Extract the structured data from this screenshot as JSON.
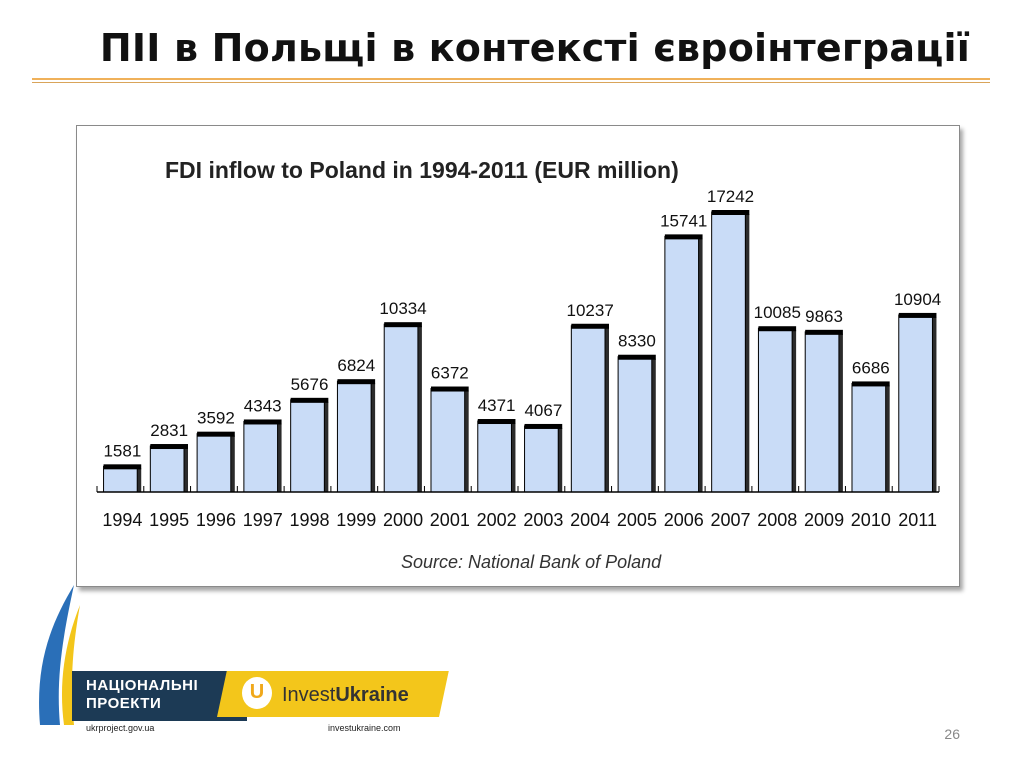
{
  "slide": {
    "title": "ПІІ в Польщі в контексті євроінтеграції",
    "page_number": "26"
  },
  "logos": {
    "national_projects": {
      "line1": "НАЦІОНАЛЬНІ",
      "line2": "ПРОЕКТИ",
      "url": "ukrproject.gov.ua"
    },
    "invest_ukraine": {
      "mark": "U",
      "word1": "Invest",
      "word2": "Ukraine",
      "url": "investukraine.com"
    }
  },
  "colors": {
    "bar_fill": "#c9dcf7",
    "bar_stroke": "#000000",
    "bar_top": "#000000",
    "title_rule": "#f0b15a",
    "logo_dark": "#1c3a55",
    "logo_yellow": "#f3c61b"
  },
  "chart_data": {
    "type": "bar",
    "title": "FDI inflow to Poland in 1994-2011 (EUR million)",
    "source": "Source: National Bank of Poland",
    "categories": [
      "1994",
      "1995",
      "1996",
      "1997",
      "1998",
      "1999",
      "2000",
      "2001",
      "2002",
      "2003",
      "2004",
      "2005",
      "2006",
      "2007",
      "2008",
      "2009",
      "2010",
      "2011"
    ],
    "values": [
      1581,
      2831,
      3592,
      4343,
      5676,
      6824,
      10334,
      6372,
      4371,
      4067,
      10237,
      8330,
      15741,
      17242,
      10085,
      9863,
      6686,
      10904
    ],
    "data_labels": [
      "1581",
      "2831",
      "3592",
      "4343",
      "5676",
      "6824",
      "10334",
      "6372",
      "4371",
      "4067",
      "10237",
      "8330",
      "15741",
      "17242",
      "10085",
      "9863",
      "6686",
      "10904"
    ],
    "ylim": [
      0,
      17242
    ],
    "grid": false,
    "legend": "none"
  }
}
